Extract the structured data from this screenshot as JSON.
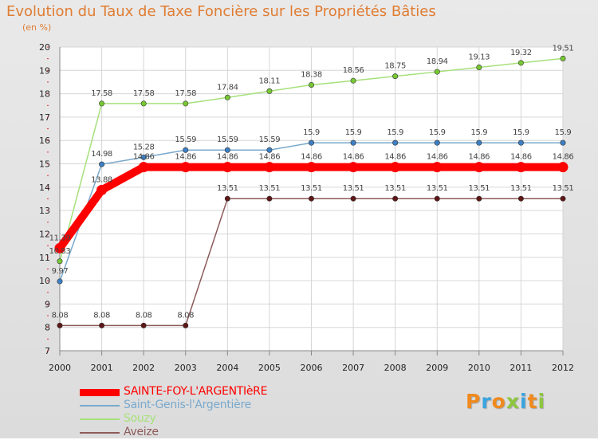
{
  "chart_data": {
    "type": "line",
    "title": "Evolution du Taux de Taxe Foncière sur les Propriétés Bâties",
    "subtitle": "(en %)",
    "x": [
      2000,
      2001,
      2002,
      2003,
      2004,
      2005,
      2006,
      2007,
      2008,
      2009,
      2010,
      2011,
      2012
    ],
    "ylim": [
      7,
      20
    ],
    "yticks": [
      7,
      8,
      9,
      10,
      11,
      12,
      13,
      14,
      15,
      16,
      17,
      18,
      19,
      20
    ],
    "grid": true,
    "legend_position": "bottom-left",
    "series": [
      {
        "name": "SAINTE-FOY-L'ARGENTIèRE",
        "color": "#ff0000",
        "marker": "#ff0000",
        "thick": true,
        "values": [
          11.39,
          13.88,
          14.86,
          14.86,
          14.86,
          14.86,
          14.86,
          14.86,
          14.86,
          14.86,
          14.86,
          14.86,
          14.86
        ],
        "labels": [
          "11.39",
          "13.88",
          "14.86",
          "14.86",
          "14.86",
          "14.86",
          "14.86",
          "14.86",
          "14.86",
          "14.86",
          "14.86",
          "14.86",
          "14.86"
        ]
      },
      {
        "name": "Saint-Genis-l'Argentière",
        "color": "#7aa9cd",
        "marker": "#3b80c6",
        "thick": false,
        "values": [
          9.97,
          14.98,
          15.28,
          15.59,
          15.59,
          15.59,
          15.9,
          15.9,
          15.9,
          15.9,
          15.9,
          15.9,
          15.9
        ],
        "labels": [
          "9.97",
          "14.98",
          "15.28",
          "15.59",
          "15.59",
          "15.59",
          "15.9",
          "15.9",
          "15.9",
          "15.9",
          "15.9",
          "15.9",
          "15.9"
        ]
      },
      {
        "name": "Souzy",
        "color": "#a6e07a",
        "marker": "#77c832",
        "thick": false,
        "values": [
          10.83,
          17.58,
          17.58,
          17.58,
          17.84,
          18.11,
          18.38,
          18.56,
          18.75,
          18.94,
          19.13,
          19.32,
          19.51
        ],
        "labels": [
          "10.83",
          "17.58",
          "17.58",
          "17.58",
          "17.84",
          "18.11",
          "18.38",
          "18.56",
          "18.75",
          "18.94",
          "19.13",
          "19.32",
          "19.51"
        ]
      },
      {
        "name": "Aveize",
        "color": "#8d5a5a",
        "marker": "#5e1616",
        "thick": false,
        "values": [
          8.08,
          8.08,
          8.08,
          8.08,
          13.51,
          13.51,
          13.51,
          13.51,
          13.51,
          13.51,
          13.51,
          13.51,
          13.51
        ],
        "labels": [
          "8.08",
          "8.08",
          "8.08",
          "8.08",
          "13.51",
          "13.51",
          "13.51",
          "13.51",
          "13.51",
          "13.51",
          "13.51",
          "13.51",
          "13.51"
        ]
      }
    ]
  },
  "logo": {
    "letters": [
      "P",
      "r",
      "o",
      "x",
      "i",
      "t",
      "i"
    ],
    "colors": [
      "#f08a1c",
      "#3aa4e0",
      "#f08a1c",
      "#8cc63f",
      "#3aa4e0",
      "#f08a1c",
      "#8cc63f"
    ]
  }
}
